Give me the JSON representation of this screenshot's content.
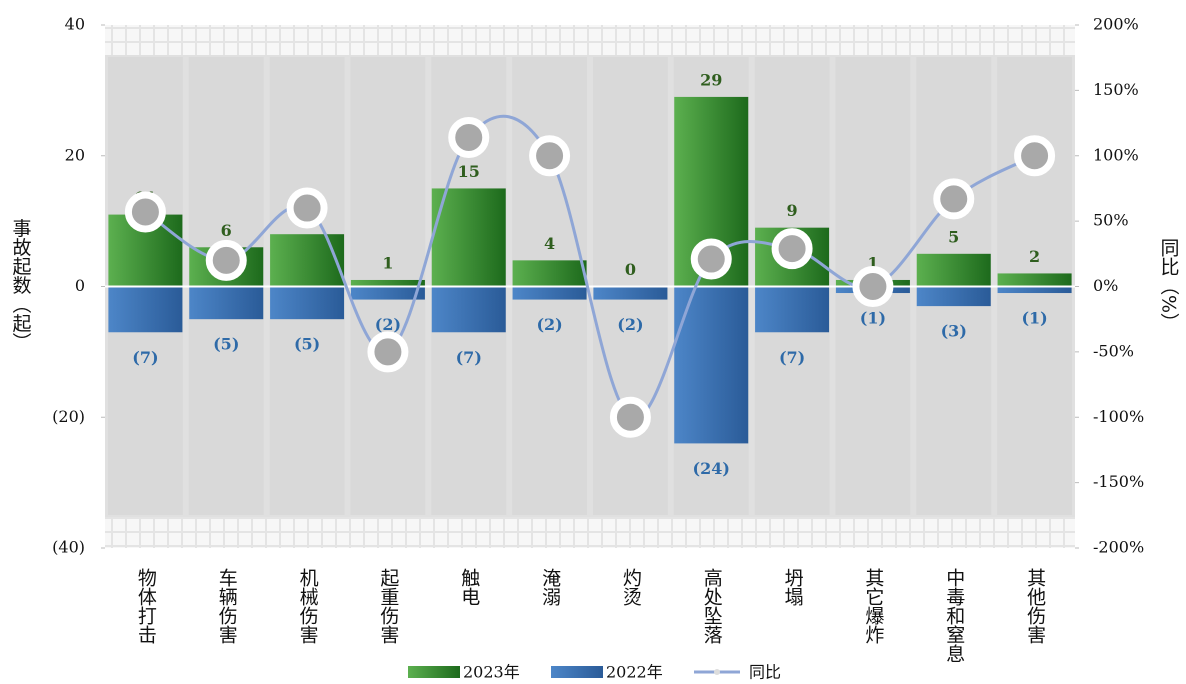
{
  "chart_data": {
    "type": "bar",
    "y_label": "事故起数（起）",
    "y2_label": "同比（%）",
    "categories": [
      "物体打击",
      "车辆伤害",
      "机械伤害",
      "起重伤害",
      "触电",
      "淹溺",
      "灼烫",
      "高处坠落",
      "坍塌",
      "其它爆炸",
      "中毒和窒息",
      "其他伤害"
    ],
    "series": [
      {
        "name": "2023年",
        "color": "#3f963a",
        "values": [
          11,
          6,
          8,
          1,
          15,
          4,
          0,
          29,
          9,
          1,
          5,
          2
        ]
      },
      {
        "name": "2022年",
        "color": "#3a71b0",
        "values": [
          -7,
          -5,
          -5,
          -2,
          -7,
          -2,
          -2,
          -24,
          -7,
          -1,
          -3,
          -1
        ],
        "value_labels": [
          "(7)",
          "(5)",
          "(5)",
          "(2)",
          "(7)",
          "(2)",
          "(2)",
          "(24)",
          "(7)",
          "(1)",
          "(3)",
          "(1)"
        ]
      },
      {
        "name": "同比",
        "type": "line",
        "axis": "y2",
        "color": "#8fa6d6",
        "values": [
          57,
          20,
          60,
          -50,
          114,
          100,
          -100,
          21,
          29,
          0,
          67,
          100
        ]
      }
    ],
    "ylim": [
      -40,
      40
    ],
    "yticks": [
      40,
      20,
      0,
      {
        "value": -20,
        "label": "(20)"
      },
      {
        "value": -40,
        "label": "(40)"
      }
    ],
    "y2lim": [
      -200,
      200
    ],
    "y2ticks": [
      {
        "value": 200,
        "label": "200%"
      },
      {
        "value": 150,
        "label": "150%"
      },
      {
        "value": 100,
        "label": "100%"
      },
      {
        "value": 50,
        "label": "50%"
      },
      {
        "value": 0,
        "label": "0%"
      },
      {
        "value": -50,
        "label": "-50%"
      },
      {
        "value": -100,
        "label": "-100%"
      },
      {
        "value": -150,
        "label": "-150%"
      },
      {
        "value": -200,
        "label": "-200%"
      }
    ],
    "legend": "bottom"
  }
}
